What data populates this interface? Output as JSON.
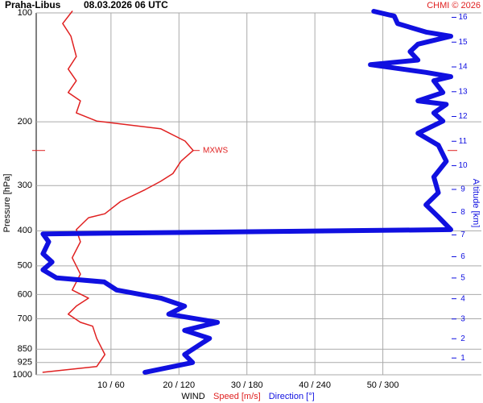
{
  "chart_data": {
    "type": "line",
    "title": "Praha-Libus",
    "subtitle": "08.03.2026 06 UTC",
    "credit": "CHMI © 2026",
    "ylabel": "Pressure [hPa]",
    "y2label": "Altitude [km]",
    "xlabel": "WIND",
    "log_y": true,
    "ylim": [
      1000,
      100
    ],
    "yticks": [
      100,
      200,
      300,
      400,
      500,
      600,
      700,
      850,
      925,
      1000
    ],
    "y2_scale": "standard-atmosphere",
    "y2ticks": [
      1,
      2,
      3,
      4,
      5,
      6,
      7,
      8,
      9,
      10,
      11,
      12,
      13,
      14,
      15,
      16
    ],
    "xlim": [
      -1,
      64.5
    ],
    "x2lim": [
      -6,
      387
    ],
    "xticks": [
      {
        "value": 10,
        "label": "10 / 60"
      },
      {
        "value": 20,
        "label": "20 / 120"
      },
      {
        "value": 30,
        "label": "30 / 180"
      },
      {
        "value": 40,
        "label": "40 / 240"
      },
      {
        "value": 50,
        "label": "50 / 300"
      }
    ],
    "grid": true,
    "max_wind": {
      "label": "MXWS",
      "pressure": 240,
      "speed": 22.1,
      "color": "#e02020"
    },
    "series": [
      {
        "name": "Speed [m/s]",
        "color": "#e02020",
        "pressure": [
          99,
          107,
          116,
          132,
          143,
          154,
          166,
          175,
          189,
          199,
          209,
          226,
          240,
          257,
          278,
          292,
          308,
          332,
          359,
          368,
          397,
          429,
          475,
          527,
          583,
          614,
          646,
          680,
          716,
          734,
          793,
          879,
          949,
          984
        ],
        "values": [
          4.3,
          2.9,
          4.1,
          4.9,
          3.7,
          4.9,
          3.7,
          5.5,
          4.9,
          7.9,
          17.3,
          20.9,
          22.1,
          20.3,
          19.1,
          17.3,
          15.0,
          11.4,
          9.1,
          6.7,
          4.9,
          5.5,
          4.3,
          5.5,
          4.3,
          6.7,
          4.9,
          3.7,
          5.5,
          7.3,
          7.9,
          9.1,
          7.9,
          0
        ]
      },
      {
        "name": "Direction [°]",
        "color": "#1010e0",
        "axis": "x2",
        "pressure": [
          99,
          102,
          107,
          113,
          116,
          122,
          128,
          135,
          139,
          146,
          150,
          154,
          166,
          175,
          179,
          189,
          199,
          215,
          232,
          257,
          284,
          314,
          339,
          366,
          397,
          408,
          429,
          463,
          488,
          513,
          540,
          554,
          583,
          614,
          646,
          680,
          716,
          754,
          793,
          879,
          925,
          984
        ],
        "values": [
          292,
          310,
          313,
          338,
          360,
          331,
          324,
          331,
          289,
          338,
          360,
          345,
          353,
          331,
          356,
          345,
          353,
          331,
          349,
          356,
          345,
          349,
          338,
          349,
          360,
          0,
          5,
          0,
          8,
          0,
          12,
          54,
          65,
          104,
          125,
          111,
          154,
          125,
          147,
          125,
          132,
          90
        ]
      }
    ]
  }
}
